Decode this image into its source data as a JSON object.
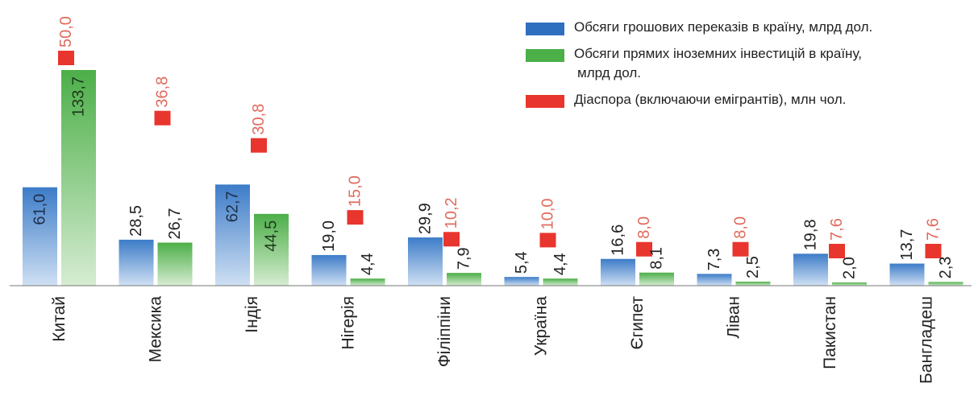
{
  "chart_data": {
    "type": "bar",
    "categories": [
      "Китай",
      "Мексика",
      "Індія",
      "Нігерія",
      "Філіппіни",
      "Україна",
      "Єгипет",
      "Ліван",
      "Пакистан",
      "Бангладеш"
    ],
    "series": [
      {
        "name": "Обсяги грошових переказів в країну, млрд дол.",
        "values": [
          61.0,
          28.5,
          62.7,
          19.0,
          29.9,
          5.4,
          16.6,
          7.3,
          19.8,
          13.7
        ],
        "labels": [
          "61,0",
          "28,5",
          "62,7",
          "19,0",
          "29,9",
          "5,4",
          "16,6",
          "7,3",
          "19,8",
          "13,7"
        ],
        "color": "#3f7ec9"
      },
      {
        "name": "Обсяги прямих іноземних інвестицій в країну, млрд дол.",
        "values": [
          133.7,
          26.7,
          44.5,
          4.4,
          7.9,
          4.4,
          8.1,
          2.5,
          2.0,
          2.3
        ],
        "labels": [
          "133,7",
          "26,7",
          "44,5",
          "4,4",
          "7,9",
          "4,4",
          "8,1",
          "2,5",
          "2,0",
          "2,3"
        ],
        "color": "#4fb04a"
      },
      {
        "name": "Діаспора (включаючи емігрантів), млн чол.",
        "values": [
          50.0,
          36.8,
          30.8,
          15.0,
          10.2,
          10.0,
          8.0,
          8.0,
          7.6,
          7.6
        ],
        "labels": [
          "50,0",
          "36,8",
          "30,8",
          "15,0",
          "10,2",
          "10,0",
          "8,0",
          "8,0",
          "7,6",
          "7,6"
        ],
        "color": "#e8352d",
        "label_color": "#e06b5e"
      }
    ],
    "legend_lines": [
      [
        "Обсяги грошових переказів в країну, млрд дол."
      ],
      [
        "Обсяги прямих іноземних інвестицій в країну,",
        "млрд дол."
      ],
      [
        "Діаспора (включаючи емігрантів), млн чол."
      ]
    ],
    "legend_position": "top-right",
    "grid": false
  }
}
